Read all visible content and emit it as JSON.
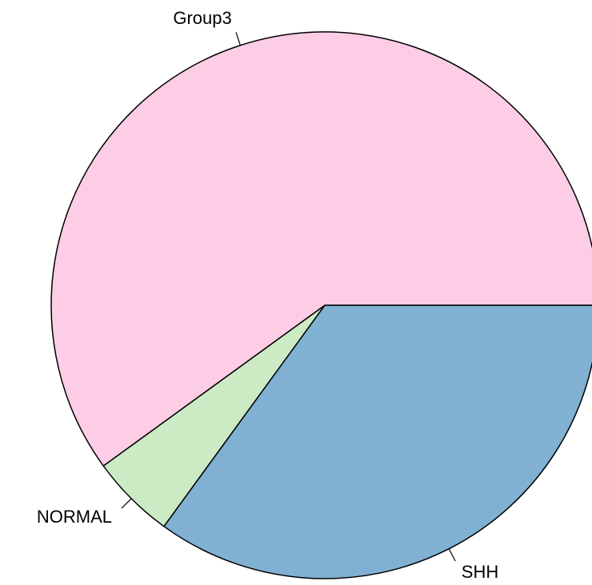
{
  "chart_data": {
    "type": "pie",
    "categories": [
      "Group3",
      "NORMAL",
      "SHH"
    ],
    "values": [
      60,
      5,
      35
    ],
    "colors": [
      "#FCCDE5",
      "#CCEBC5",
      "#80B1D3"
    ]
  }
}
